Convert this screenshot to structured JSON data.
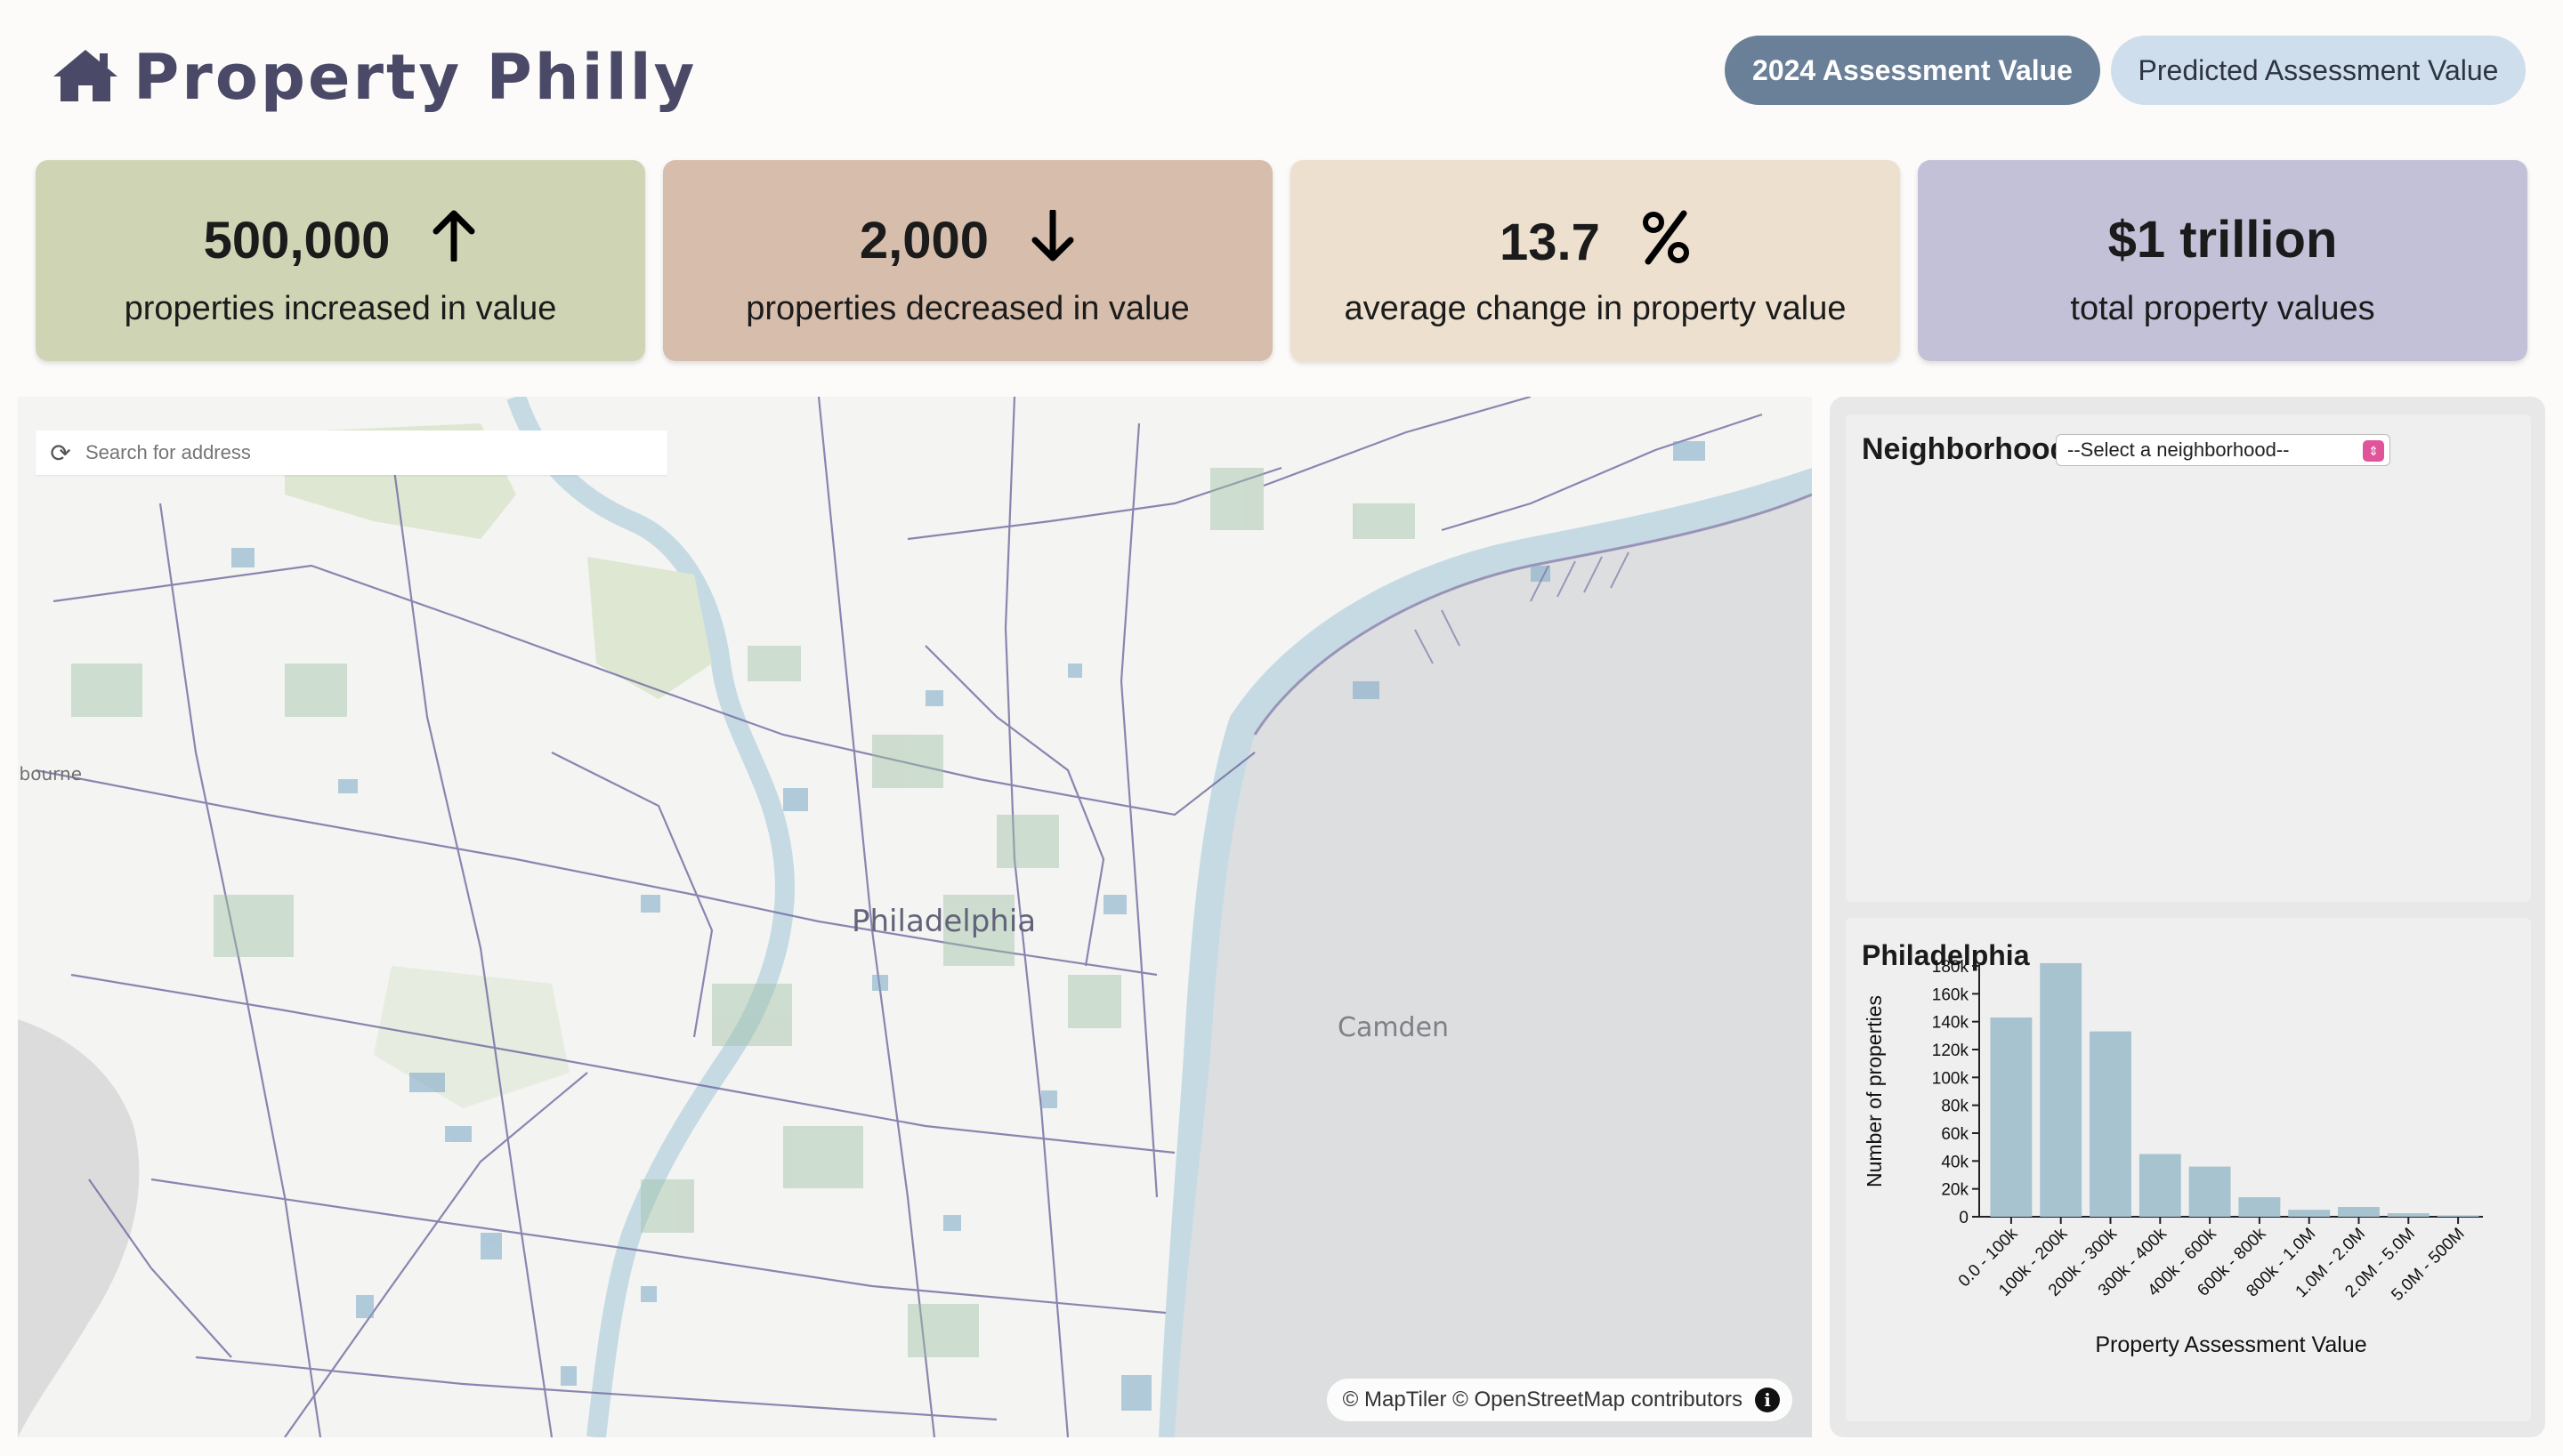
{
  "header": {
    "title": "Property Philly",
    "logo_icon": "house-icon",
    "toggle_active": "2024 Assessment Value",
    "toggle_inactive": "Predicted Assessment Value"
  },
  "stats": [
    {
      "value": "500,000",
      "icon": "arrow-up-icon",
      "label": "properties increased in value",
      "color": "#cfd5b4"
    },
    {
      "value": "2,000",
      "icon": "arrow-down-icon",
      "label": "properties decreased in value",
      "color": "#d7bdab"
    },
    {
      "value": "13.7",
      "icon": "percent-icon",
      "label": "average change in property value",
      "color": "#ede0cf"
    },
    {
      "value": "$1 trillion",
      "icon": "",
      "label": "total property values",
      "color": "#c3c1d8"
    }
  ],
  "map": {
    "search_placeholder": "Search for address",
    "labels": {
      "city": "Philadelphia",
      "camden": "Camden",
      "edge": "lbourne"
    },
    "attribution": "© MapTiler © OpenStreetMap contributors",
    "info_glyph": "i"
  },
  "neighborhood": {
    "title": "Neighborhood",
    "select_value": "--Select a neighborhood--"
  },
  "histogram": {
    "title": "Philadelphia"
  },
  "chart_data": {
    "type": "bar",
    "title": "Philadelphia",
    "xlabel": "Property Assessment Value",
    "ylabel": "Number of properties",
    "categories": [
      "0.0 - 100k",
      "100k - 200k",
      "200k - 300k",
      "300k - 400k",
      "400k - 600k",
      "600k - 800k",
      "800k - 1.0M",
      "1.0M - 2.0M",
      "2.0M - 5.0M",
      "5.0M - 500M"
    ],
    "values": [
      143000,
      182000,
      133000,
      45000,
      36000,
      14000,
      5000,
      7000,
      2500,
      1000
    ],
    "ylim": [
      0,
      180000
    ],
    "yticks": [
      0,
      20000,
      40000,
      60000,
      80000,
      100000,
      120000,
      140000,
      160000,
      180000
    ],
    "ytick_labels": [
      "0",
      "20k",
      "40k",
      "60k",
      "80k",
      "100k",
      "120k",
      "140k",
      "160k",
      "180k"
    ],
    "bar_color": "#a7c3cf",
    "grid": false
  }
}
